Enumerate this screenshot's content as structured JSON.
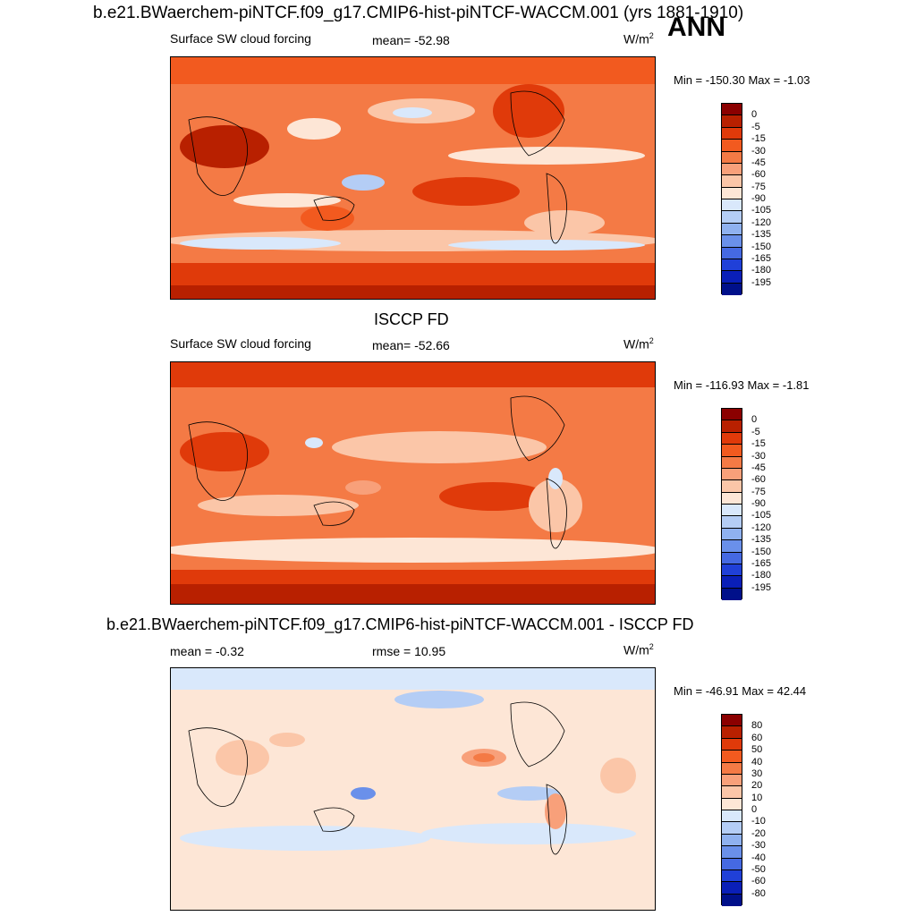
{
  "header": {
    "main_title": "b.e21.BWaerchem-piNTCF.f09_g17.CMIP6-hist-piNTCF-WACCM.001 (yrs 1881-1910)",
    "season": "ANN"
  },
  "panels": [
    {
      "title": "",
      "left_label": "Surface SW cloud forcing",
      "center_label": "mean= -52.98",
      "units_base": "W/m",
      "units_exp": "2",
      "minmax": "Min = -150.30 Max =  -1.03",
      "colorbar": {
        "labels": [
          "0",
          "-5",
          "-15",
          "-30",
          "-45",
          "-60",
          "-75",
          "-90",
          "-105",
          "-120",
          "-135",
          "-150",
          "-165",
          "-180",
          "-195"
        ],
        "colors": [
          "#8b0000",
          "#b82000",
          "#e03a0a",
          "#f25a1f",
          "#f47a45",
          "#f8a07a",
          "#fbc6a8",
          "#fde6d6",
          "#d9e8fb",
          "#b4cdf5",
          "#8fb1ef",
          "#6a90ea",
          "#4569e2",
          "#2040d8",
          "#0a1fb8",
          "#00108a"
        ]
      }
    },
    {
      "title": "ISCCP FD",
      "left_label": "Surface SW cloud forcing",
      "center_label": "mean= -52.66",
      "units_base": "W/m",
      "units_exp": "2",
      "minmax": "Min = -116.93 Max =  -1.81",
      "colorbar": {
        "labels": [
          "0",
          "-5",
          "-15",
          "-30",
          "-45",
          "-60",
          "-75",
          "-90",
          "-105",
          "-120",
          "-135",
          "-150",
          "-165",
          "-180",
          "-195"
        ],
        "colors": [
          "#8b0000",
          "#b82000",
          "#e03a0a",
          "#f25a1f",
          "#f47a45",
          "#f8a07a",
          "#fbc6a8",
          "#fde6d6",
          "#d9e8fb",
          "#b4cdf5",
          "#8fb1ef",
          "#6a90ea",
          "#4569e2",
          "#2040d8",
          "#0a1fb8",
          "#00108a"
        ]
      }
    },
    {
      "title": "b.e21.BWaerchem-piNTCF.f09_g17.CMIP6-hist-piNTCF-WACCM.001 - ISCCP FD",
      "left_label": "mean =  -0.32",
      "center_label": "rmse =  10.95",
      "units_base": "W/m",
      "units_exp": "2",
      "minmax": "Min = -46.91 Max =  42.44",
      "colorbar": {
        "labels": [
          "80",
          "60",
          "50",
          "40",
          "30",
          "20",
          "10",
          "0",
          "-10",
          "-20",
          "-30",
          "-40",
          "-50",
          "-60",
          "-80"
        ],
        "colors": [
          "#8b0000",
          "#b82000",
          "#e03a0a",
          "#f25a1f",
          "#f47a45",
          "#f8a07a",
          "#fbc6a8",
          "#fde6d6",
          "#d9e8fb",
          "#b4cdf5",
          "#8fb1ef",
          "#6a90ea",
          "#4569e2",
          "#2040d8",
          "#0a1fb8",
          "#00108a"
        ]
      }
    }
  ]
}
